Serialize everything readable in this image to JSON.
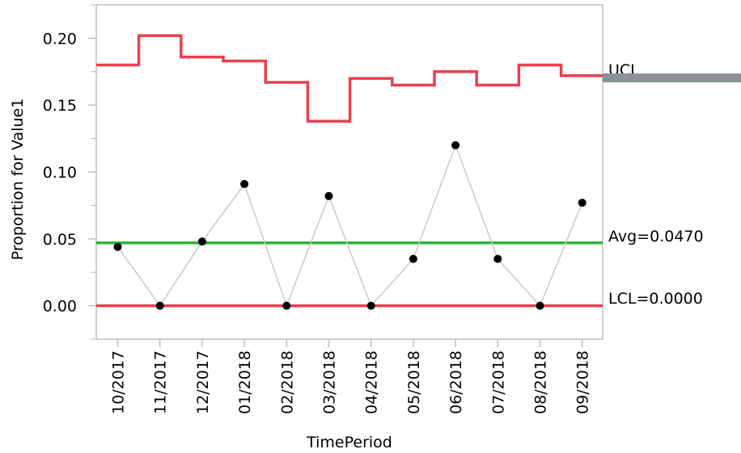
{
  "chart_data": {
    "type": "line",
    "chart_kind": "p control chart",
    "xlabel": "TimePeriod",
    "ylabel": "Proportion for Value1",
    "categories": [
      "10/2017",
      "11/2017",
      "12/2017",
      "01/2018",
      "02/2018",
      "03/2018",
      "04/2018",
      "05/2018",
      "06/2018",
      "07/2018",
      "08/2018",
      "09/2018"
    ],
    "series": [
      {
        "values": [
          0.044,
          0.0,
          0.048,
          0.091,
          0.0,
          0.082,
          0.0,
          0.035,
          0.12,
          0.035,
          0.0,
          0.077
        ]
      }
    ],
    "ucl_values": [
      0.18,
      0.202,
      0.186,
      0.183,
      0.167,
      0.138,
      0.17,
      0.165,
      0.175,
      0.165,
      0.18,
      0.172
    ],
    "avg": 0.047,
    "lcl": 0.0,
    "limit_labels": {
      "ucl": "UCL",
      "avg": "Avg=0.0470",
      "lcl": "LCL=0.0000"
    },
    "y_ticks": [
      "0.00",
      "0.05",
      "0.10",
      "0.15",
      "0.20"
    ],
    "y_tick_values": [
      0.0,
      0.05,
      0.1,
      0.15,
      0.2
    ],
    "ylim": [
      -0.025,
      0.225
    ],
    "grid": false,
    "colors": {
      "ucl": "#e8404f",
      "lcl": "#e8404f",
      "avg": "#2ab63a",
      "data_line": "#c9c9c9",
      "data_point": "#000000",
      "frame": "#c0c0c0",
      "handle": "#8a9296"
    }
  }
}
